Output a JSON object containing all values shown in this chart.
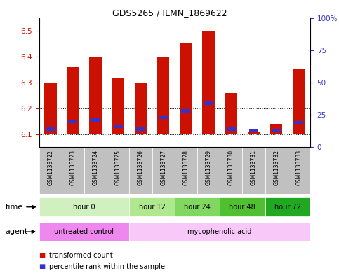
{
  "title": "GDS5265 / ILMN_1869622",
  "samples": [
    "GSM1133722",
    "GSM1133723",
    "GSM1133724",
    "GSM1133725",
    "GSM1133726",
    "GSM1133727",
    "GSM1133728",
    "GSM1133729",
    "GSM1133730",
    "GSM1133731",
    "GSM1133732",
    "GSM1133733"
  ],
  "transformed_counts": [
    6.3,
    6.36,
    6.4,
    6.32,
    6.3,
    6.4,
    6.45,
    6.5,
    6.26,
    6.11,
    6.14,
    6.35
  ],
  "percentile_values": [
    6.12,
    6.15,
    6.155,
    6.13,
    6.12,
    6.165,
    6.19,
    6.22,
    6.12,
    6.115,
    6.115,
    6.145
  ],
  "bar_base": 6.1,
  "ylim_left": [
    6.05,
    6.55
  ],
  "ylim_right": [
    0,
    100
  ],
  "yticks_left": [
    6.1,
    6.2,
    6.3,
    6.4,
    6.5
  ],
  "yticks_right": [
    0,
    25,
    50,
    75,
    100
  ],
  "ytick_labels_right": [
    "0",
    "25",
    "50",
    "75",
    "100%"
  ],
  "time_groups": [
    {
      "label": "hour 0",
      "start": 0,
      "end": 3,
      "color": "#d0f0c0"
    },
    {
      "label": "hour 12",
      "start": 4,
      "end": 5,
      "color": "#b0e890"
    },
    {
      "label": "hour 24",
      "start": 6,
      "end": 7,
      "color": "#80d860"
    },
    {
      "label": "hour 48",
      "start": 8,
      "end": 9,
      "color": "#50c030"
    },
    {
      "label": "hour 72",
      "start": 10,
      "end": 11,
      "color": "#20a820"
    }
  ],
  "agent_groups": [
    {
      "label": "untreated control",
      "start": 0,
      "end": 3,
      "color": "#ee88ee"
    },
    {
      "label": "mycophenolic acid",
      "start": 4,
      "end": 11,
      "color": "#f8c8f8"
    }
  ],
  "bar_color": "#cc1100",
  "percentile_color": "#3333cc",
  "grid_color": "#000000",
  "axis_color_left": "#cc1100",
  "axis_color_right": "#3333cc",
  "bar_width": 0.55,
  "legend_red_label": "transformed count",
  "legend_blue_label": "percentile rank within the sample",
  "sample_bg_color": "#c0c0c0",
  "time_row_label": "time",
  "agent_row_label": "agent"
}
